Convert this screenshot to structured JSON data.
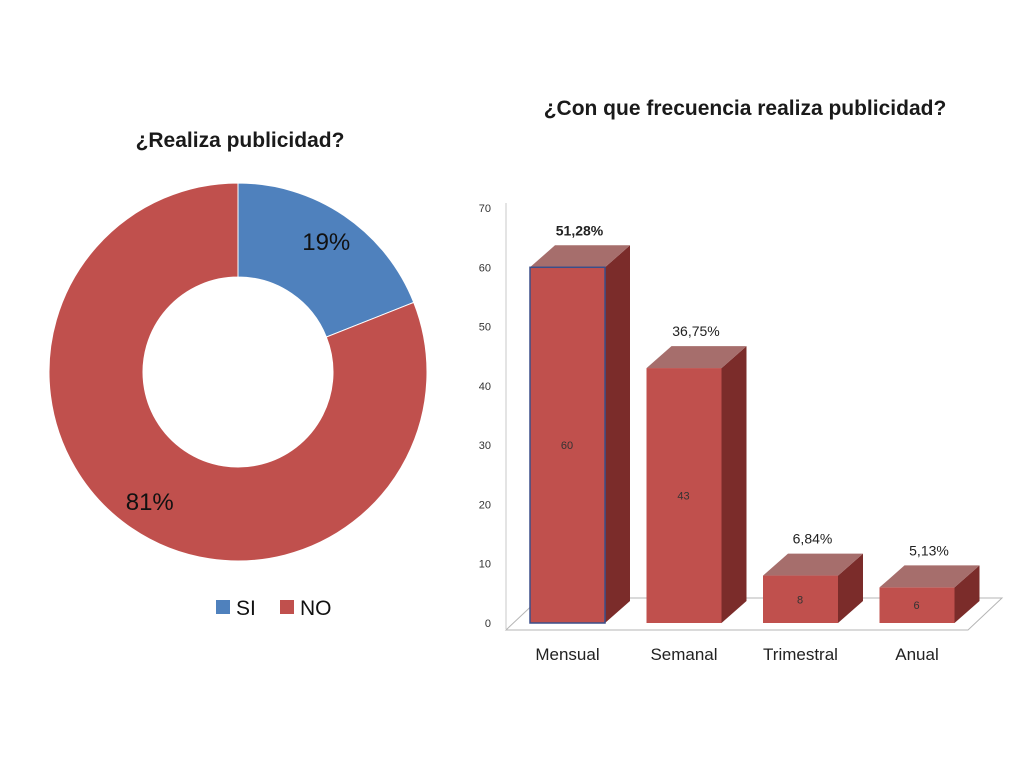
{
  "chart_data": [
    {
      "type": "pie",
      "variant": "doughnut",
      "title": "¿Realiza publicidad?",
      "slices": [
        {
          "name": "SI",
          "value": 19,
          "label": "19%",
          "color": "#4f81bd"
        },
        {
          "name": "NO",
          "value": 81,
          "label": "81%",
          "color": "#c0504d"
        }
      ],
      "legend": {
        "position": "bottom",
        "items": [
          "SI",
          "NO"
        ]
      }
    },
    {
      "type": "bar",
      "variant": "3d-column",
      "title": "¿Con que frecuencia realiza publicidad?",
      "categories": [
        "Mensual",
        "Semanal",
        "Trimestral",
        "Anual"
      ],
      "values": [
        60,
        43,
        8,
        6
      ],
      "value_labels": [
        "60",
        "43",
        "8",
        "6"
      ],
      "top_labels": [
        "51,28%",
        "36,75%",
        "6,84%",
        "5,13%"
      ],
      "top_label_bold": [
        true,
        false,
        false,
        false
      ],
      "ylim": [
        0,
        70
      ],
      "yticks": [
        "0",
        "10",
        "20",
        "30",
        "40",
        "50",
        "60",
        "70"
      ],
      "grid": false,
      "color": "#c0504d",
      "xlabel": "",
      "ylabel": ""
    }
  ]
}
